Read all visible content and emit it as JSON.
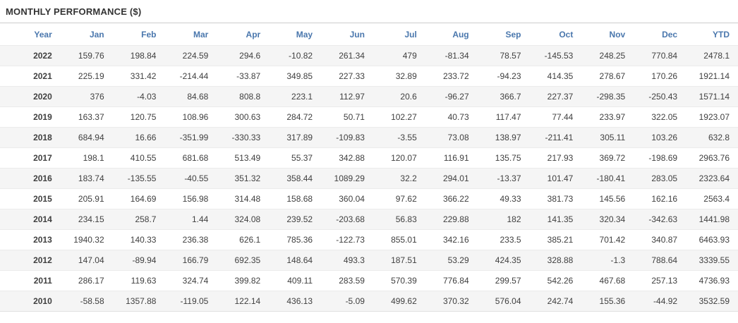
{
  "title": "MONTHLY PERFORMANCE ($)",
  "colors": {
    "title_text": "#333333",
    "header_text": "#4a77ad",
    "value_text": "#404040",
    "negative_text": "#e05c5c",
    "stripe_bg": "#f5f5f5",
    "divider": "#cccccc",
    "row_border": "#ebebeb"
  },
  "chart_data": {
    "type": "table",
    "title": "MONTHLY PERFORMANCE ($)",
    "columns": [
      "Year",
      "Jan",
      "Feb",
      "Mar",
      "Apr",
      "May",
      "Jun",
      "Jul",
      "Aug",
      "Sep",
      "Oct",
      "Nov",
      "Dec",
      "YTD"
    ],
    "rows": [
      {
        "year": "2022",
        "values": [
          "159.76",
          "198.84",
          "224.59",
          "294.6",
          "-10.82",
          "261.34",
          "479",
          "-81.34",
          "78.57",
          "-145.53",
          "248.25",
          "770.84",
          "2478.1"
        ]
      },
      {
        "year": "2021",
        "values": [
          "225.19",
          "331.42",
          "-214.44",
          "-33.87",
          "349.85",
          "227.33",
          "32.89",
          "233.72",
          "-94.23",
          "414.35",
          "278.67",
          "170.26",
          "1921.14"
        ]
      },
      {
        "year": "2020",
        "values": [
          "376",
          "-4.03",
          "84.68",
          "808.8",
          "223.1",
          "112.97",
          "20.6",
          "-96.27",
          "366.7",
          "227.37",
          "-298.35",
          "-250.43",
          "1571.14"
        ]
      },
      {
        "year": "2019",
        "values": [
          "163.37",
          "120.75",
          "108.96",
          "300.63",
          "284.72",
          "50.71",
          "102.27",
          "40.73",
          "117.47",
          "77.44",
          "233.97",
          "322.05",
          "1923.07"
        ]
      },
      {
        "year": "2018",
        "values": [
          "684.94",
          "16.66",
          "-351.99",
          "-330.33",
          "317.89",
          "-109.83",
          "-3.55",
          "73.08",
          "138.97",
          "-211.41",
          "305.11",
          "103.26",
          "632.8"
        ]
      },
      {
        "year": "2017",
        "values": [
          "198.1",
          "410.55",
          "681.68",
          "513.49",
          "55.37",
          "342.88",
          "120.07",
          "116.91",
          "135.75",
          "217.93",
          "369.72",
          "-198.69",
          "2963.76"
        ]
      },
      {
        "year": "2016",
        "values": [
          "183.74",
          "-135.55",
          "-40.55",
          "351.32",
          "358.44",
          "1089.29",
          "32.2",
          "294.01",
          "-13.37",
          "101.47",
          "-180.41",
          "283.05",
          "2323.64"
        ]
      },
      {
        "year": "2015",
        "values": [
          "205.91",
          "164.69",
          "156.98",
          "314.48",
          "158.68",
          "360.04",
          "97.62",
          "366.22",
          "49.33",
          "381.73",
          "145.56",
          "162.16",
          "2563.4"
        ]
      },
      {
        "year": "2014",
        "values": [
          "234.15",
          "258.7",
          "1.44",
          "324.08",
          "239.52",
          "-203.68",
          "56.83",
          "229.88",
          "182",
          "141.35",
          "320.34",
          "-342.63",
          "1441.98"
        ]
      },
      {
        "year": "2013",
        "values": [
          "1940.32",
          "140.33",
          "236.38",
          "626.1",
          "785.36",
          "-122.73",
          "855.01",
          "342.16",
          "233.5",
          "385.21",
          "701.42",
          "340.87",
          "6463.93"
        ]
      },
      {
        "year": "2012",
        "values": [
          "147.04",
          "-89.94",
          "166.79",
          "692.35",
          "148.64",
          "493.3",
          "187.51",
          "53.29",
          "424.35",
          "328.88",
          "-1.3",
          "788.64",
          "3339.55"
        ]
      },
      {
        "year": "2011",
        "values": [
          "286.17",
          "119.63",
          "324.74",
          "399.82",
          "409.11",
          "283.59",
          "570.39",
          "776.84",
          "299.57",
          "542.26",
          "467.68",
          "257.13",
          "4736.93"
        ]
      },
      {
        "year": "2010",
        "values": [
          "-58.58",
          "1357.88",
          "-119.05",
          "122.14",
          "436.13",
          "-5.09",
          "499.62",
          "370.32",
          "576.04",
          "242.74",
          "155.36",
          "-44.92",
          "3532.59"
        ]
      }
    ]
  }
}
